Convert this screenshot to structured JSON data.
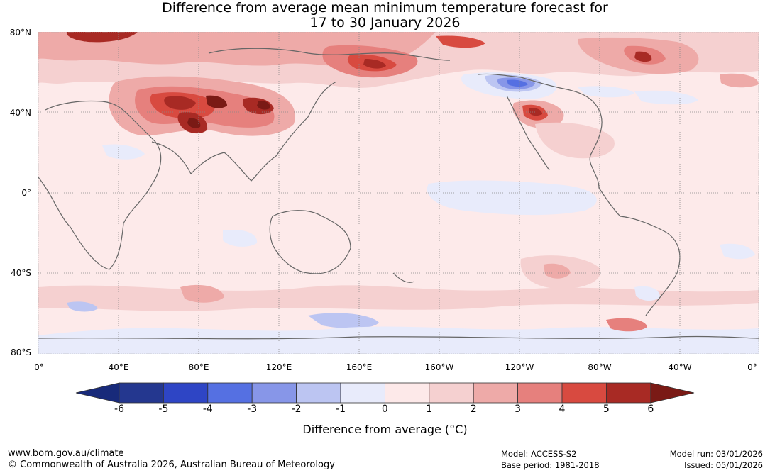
{
  "title": {
    "line1": "Difference from average mean minimum temperature forecast for",
    "line2": "17 to 30 January 2026"
  },
  "map": {
    "lat_labels": [
      "80°N",
      "40°N",
      "0°",
      "40°S",
      "80°S"
    ],
    "lon_labels": [
      "0°",
      "40°E",
      "80°E",
      "120°E",
      "160°E",
      "160°W",
      "120°W",
      "80°W",
      "40°W",
      "0°"
    ]
  },
  "colorbar": {
    "ticks": [
      "-6",
      "-5",
      "-4",
      "-3",
      "-2",
      "-1",
      "0",
      "1",
      "2",
      "3",
      "4",
      "5",
      "6"
    ],
    "colors": [
      "#24378f",
      "#2e45c5",
      "#5570e2",
      "#8796e8",
      "#bcc5f2",
      "#e8ebfb",
      "#fde9e9",
      "#f5d0d0",
      "#eeaaa8",
      "#e6807d",
      "#d84a40",
      "#a82a24"
    ],
    "under_color": "#182a7a",
    "over_color": "#7a1a15",
    "label": "Difference from average (°C)"
  },
  "footer": {
    "website": "www.bom.gov.au/climate",
    "copyright": "© Commonwealth of Australia 2026, Australian Bureau of Meteorology",
    "model": "Model: ACCESS-S2",
    "base_period": "Base period: 1981-2018",
    "model_run": "Model run: 03/01/2026",
    "issued": "Issued: 05/01/2026"
  }
}
